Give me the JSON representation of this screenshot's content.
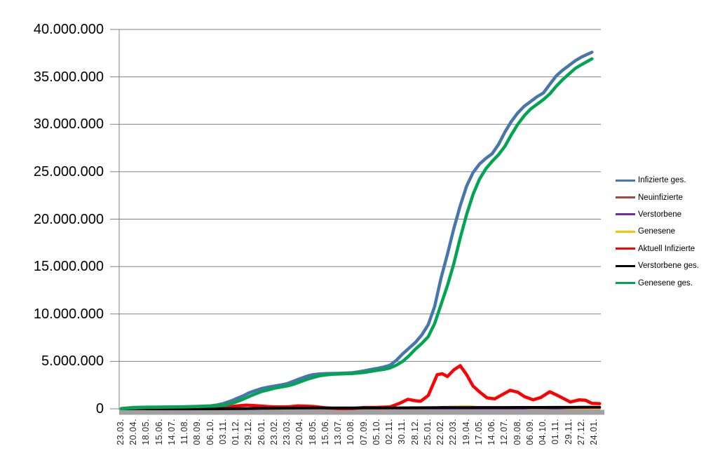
{
  "chart_data": {
    "type": "line",
    "title": "",
    "xlabel": "",
    "ylabel": "",
    "unit": "millions of persons",
    "ylim": [
      0,
      40000000
    ],
    "grid": "horizontal",
    "legend_position": "right",
    "y_axis_labels": [
      "40.000.000",
      "35.000.000",
      "30.000.000",
      "25.000.000",
      "20.000.000",
      "15.000.000",
      "10.000.000",
      "5.000.000",
      "0"
    ],
    "x_axis_labels": [
      "23.03.",
      "20.04.",
      "18.05.",
      "15.06.",
      "14.07.",
      "11.08.",
      "08.09.",
      "06.10.",
      "03.11.",
      "01.12.",
      "29.12.",
      "26.01.",
      "23.02.",
      "23.03.",
      "20.04.",
      "18.05.",
      "15.06.",
      "13.07.",
      "10.08.",
      "07.09.",
      "05.10.",
      "02.11.",
      "30.11.",
      "28.12.",
      "25.01.",
      "22.02.",
      "22.03.",
      "19.04.",
      "17.05.",
      "14.06.",
      "12.07.",
      "09.08.",
      "06.09.",
      "04.10.",
      "01.11.",
      "29.11.",
      "27.12.",
      "24.01."
    ],
    "x_unit": "tick index (one tick = 4 weeks, 23.03.2020 - 24.01.2023)",
    "series": [
      {
        "name": "Infizierte ges.",
        "color": "#4876AC",
        "points_millions": [
          [
            0,
            0.03
          ],
          [
            1,
            0.145
          ],
          [
            2,
            0.176
          ],
          [
            3,
            0.187
          ],
          [
            4,
            0.2
          ],
          [
            5,
            0.22
          ],
          [
            6,
            0.26
          ],
          [
            7,
            0.32
          ],
          [
            7.5,
            0.41
          ],
          [
            8,
            0.56
          ],
          [
            8.5,
            0.79
          ],
          [
            9,
            1.07
          ],
          [
            9.5,
            1.35
          ],
          [
            10,
            1.69
          ],
          [
            10.5,
            1.93
          ],
          [
            11,
            2.15
          ],
          [
            11.5,
            2.29
          ],
          [
            12,
            2.4
          ],
          [
            12.5,
            2.52
          ],
          [
            13,
            2.67
          ],
          [
            13.5,
            2.93
          ],
          [
            14,
            3.19
          ],
          [
            14.5,
            3.43
          ],
          [
            15,
            3.61
          ],
          [
            15.5,
            3.68
          ],
          [
            16,
            3.72
          ],
          [
            17,
            3.74
          ],
          [
            18,
            3.8
          ],
          [
            18.5,
            3.89
          ],
          [
            19,
            4.01
          ],
          [
            19.5,
            4.14
          ],
          [
            20,
            4.26
          ],
          [
            20.5,
            4.41
          ],
          [
            21,
            4.59
          ],
          [
            21.5,
            5.1
          ],
          [
            22,
            5.79
          ],
          [
            22.5,
            6.4
          ],
          [
            23,
            7.0
          ],
          [
            23.5,
            7.8
          ],
          [
            24,
            8.87
          ],
          [
            24.5,
            10.8
          ],
          [
            25,
            13.8
          ],
          [
            25.5,
            16.3
          ],
          [
            26,
            19.0
          ],
          [
            26.5,
            21.4
          ],
          [
            27,
            23.5
          ],
          [
            27.5,
            24.9
          ],
          [
            28,
            25.8
          ],
          [
            28.5,
            26.4
          ],
          [
            29,
            26.9
          ],
          [
            29.5,
            27.9
          ],
          [
            30,
            29.2
          ],
          [
            30.5,
            30.3
          ],
          [
            31,
            31.2
          ],
          [
            31.5,
            31.9
          ],
          [
            32,
            32.4
          ],
          [
            32.5,
            32.9
          ],
          [
            33,
            33.3
          ],
          [
            33.5,
            34.2
          ],
          [
            34,
            35.1
          ],
          [
            34.5,
            35.7
          ],
          [
            35,
            36.2
          ],
          [
            35.5,
            36.7
          ],
          [
            36,
            37.1
          ],
          [
            36.4,
            37.35
          ],
          [
            36.8,
            37.6
          ]
        ]
      },
      {
        "name": "Neuinfizierte",
        "color": "#9E4A42",
        "points_millions": [
          [
            0,
            0.004
          ],
          [
            1,
            0.002
          ],
          [
            3,
            0.001
          ],
          [
            5,
            0.001
          ],
          [
            7,
            0.008
          ],
          [
            8,
            0.018
          ],
          [
            9,
            0.019
          ],
          [
            10,
            0.022
          ],
          [
            11,
            0.012
          ],
          [
            12,
            0.008
          ],
          [
            13,
            0.014
          ],
          [
            14,
            0.018
          ],
          [
            15,
            0.008
          ],
          [
            16,
            0.002
          ],
          [
            17,
            0.001
          ],
          [
            18,
            0.005
          ],
          [
            19,
            0.01
          ],
          [
            20,
            0.008
          ],
          [
            21,
            0.02
          ],
          [
            22,
            0.05
          ],
          [
            23,
            0.04
          ],
          [
            24,
            0.09
          ],
          [
            25,
            0.19
          ],
          [
            25.7,
            0.22
          ],
          [
            26.5,
            0.25
          ],
          [
            27,
            0.16
          ],
          [
            27.5,
            0.12
          ],
          [
            28,
            0.07
          ],
          [
            29,
            0.05
          ],
          [
            29.8,
            0.1
          ],
          [
            30.5,
            0.12
          ],
          [
            31,
            0.08
          ],
          [
            32,
            0.04
          ],
          [
            33,
            0.09
          ],
          [
            33.6,
            0.11
          ],
          [
            34.5,
            0.04
          ],
          [
            35.5,
            0.045
          ],
          [
            36,
            0.04
          ],
          [
            36.5,
            0.02
          ],
          [
            37.4,
            0.01
          ]
        ]
      },
      {
        "name": "Verstorbene",
        "color": "#7030A0",
        "points_millions": [
          [
            0,
            0.0005
          ],
          [
            37.4,
            0.0008
          ]
        ]
      },
      {
        "name": "Genesene",
        "color": "#FFC000",
        "points_millions": [
          [
            0,
            0.002
          ],
          [
            1,
            0.004
          ],
          [
            8,
            0.01
          ],
          [
            9,
            0.015
          ],
          [
            10,
            0.02
          ],
          [
            11,
            0.015
          ],
          [
            12,
            0.008
          ],
          [
            13,
            0.01
          ],
          [
            14,
            0.016
          ],
          [
            15,
            0.012
          ],
          [
            16,
            0.004
          ],
          [
            17,
            0.001
          ],
          [
            18,
            0.003
          ],
          [
            19,
            0.008
          ],
          [
            20,
            0.008
          ],
          [
            21,
            0.012
          ],
          [
            22,
            0.035
          ],
          [
            23,
            0.045
          ],
          [
            24,
            0.06
          ],
          [
            25,
            0.15
          ],
          [
            26,
            0.22
          ],
          [
            26.8,
            0.28
          ],
          [
            27.5,
            0.25
          ],
          [
            28,
            0.15
          ],
          [
            29,
            0.08
          ],
          [
            30,
            0.09
          ],
          [
            30.8,
            0.11
          ],
          [
            31.5,
            0.09
          ],
          [
            32,
            0.05
          ],
          [
            33,
            0.07
          ],
          [
            34,
            0.1
          ],
          [
            34.8,
            0.06
          ],
          [
            35.5,
            0.04
          ],
          [
            36,
            0.045
          ],
          [
            37,
            0.02
          ],
          [
            37.4,
            0.01
          ]
        ]
      },
      {
        "name": "Aktuell Infizierte",
        "color": "#FF0000",
        "points_millions": [
          [
            0,
            0.02
          ],
          [
            0.4,
            0.07
          ],
          [
            1,
            0.06
          ],
          [
            2,
            0.02
          ],
          [
            3,
            0.008
          ],
          [
            4,
            0.006
          ],
          [
            5,
            0.01
          ],
          [
            6,
            0.02
          ],
          [
            7,
            0.04
          ],
          [
            8,
            0.12
          ],
          [
            9,
            0.3
          ],
          [
            9.8,
            0.39
          ],
          [
            10.5,
            0.33
          ],
          [
            11.5,
            0.24
          ],
          [
            12,
            0.21
          ],
          [
            13,
            0.21
          ],
          [
            13.8,
            0.3
          ],
          [
            14.5,
            0.28
          ],
          [
            15,
            0.25
          ],
          [
            16,
            0.1
          ],
          [
            17,
            0.03
          ],
          [
            18,
            0.03
          ],
          [
            19,
            0.14
          ],
          [
            20,
            0.15
          ],
          [
            21,
            0.2
          ],
          [
            21.8,
            0.6
          ],
          [
            22.4,
            1.0
          ],
          [
            23,
            0.85
          ],
          [
            23.4,
            0.8
          ],
          [
            24,
            1.4
          ],
          [
            24.7,
            3.6
          ],
          [
            25.1,
            3.7
          ],
          [
            25.5,
            3.4
          ],
          [
            26,
            4.1
          ],
          [
            26.5,
            4.55
          ],
          [
            27,
            3.6
          ],
          [
            27.5,
            2.4
          ],
          [
            28,
            1.8
          ],
          [
            28.6,
            1.15
          ],
          [
            29.2,
            1.05
          ],
          [
            29.8,
            1.5
          ],
          [
            30.4,
            1.95
          ],
          [
            31,
            1.75
          ],
          [
            31.5,
            1.3
          ],
          [
            32.2,
            0.95
          ],
          [
            32.8,
            1.2
          ],
          [
            33.5,
            1.8
          ],
          [
            34.2,
            1.35
          ],
          [
            35.1,
            0.72
          ],
          [
            35.8,
            0.95
          ],
          [
            36.3,
            0.9
          ],
          [
            36.8,
            0.58
          ],
          [
            37.4,
            0.55
          ]
        ]
      },
      {
        "name": "Verstorbene ges.",
        "color": "#000000",
        "points_millions": [
          [
            0,
            0.002
          ],
          [
            8,
            0.011
          ],
          [
            9,
            0.017
          ],
          [
            10,
            0.033
          ],
          [
            11,
            0.054
          ],
          [
            12,
            0.069
          ],
          [
            13,
            0.075
          ],
          [
            14,
            0.081
          ],
          [
            15,
            0.086
          ],
          [
            16,
            0.09
          ],
          [
            18,
            0.092
          ],
          [
            20,
            0.095
          ],
          [
            21,
            0.096
          ],
          [
            22,
            0.101
          ],
          [
            23,
            0.111
          ],
          [
            24,
            0.117
          ],
          [
            25,
            0.122
          ],
          [
            26,
            0.127
          ],
          [
            27,
            0.133
          ],
          [
            28,
            0.138
          ],
          [
            29,
            0.14
          ],
          [
            30,
            0.142
          ],
          [
            31,
            0.145
          ],
          [
            32,
            0.147
          ],
          [
            33,
            0.15
          ],
          [
            34,
            0.153
          ],
          [
            35,
            0.156
          ],
          [
            36,
            0.161
          ],
          [
            37.4,
            0.166
          ]
        ]
      },
      {
        "name": "Genesene ges.",
        "color": "#00A551",
        "points_millions": [
          [
            0,
            0.01
          ],
          [
            1,
            0.08
          ],
          [
            2,
            0.15
          ],
          [
            3,
            0.172
          ],
          [
            4,
            0.186
          ],
          [
            5,
            0.2
          ],
          [
            6,
            0.235
          ],
          [
            7,
            0.28
          ],
          [
            8,
            0.37
          ],
          [
            8.5,
            0.52
          ],
          [
            9,
            0.73
          ],
          [
            9.5,
            1.0
          ],
          [
            10,
            1.3
          ],
          [
            10.5,
            1.58
          ],
          [
            11,
            1.83
          ],
          [
            11.5,
            2.0
          ],
          [
            12,
            2.18
          ],
          [
            12.5,
            2.3
          ],
          [
            13,
            2.42
          ],
          [
            13.5,
            2.6
          ],
          [
            14,
            2.85
          ],
          [
            14.5,
            3.1
          ],
          [
            15,
            3.3
          ],
          [
            15.5,
            3.48
          ],
          [
            16,
            3.58
          ],
          [
            16.5,
            3.64
          ],
          [
            17,
            3.67
          ],
          [
            18,
            3.71
          ],
          [
            19,
            3.84
          ],
          [
            19.5,
            3.95
          ],
          [
            20,
            4.05
          ],
          [
            20.5,
            4.15
          ],
          [
            21,
            4.3
          ],
          [
            21.5,
            4.6
          ],
          [
            22,
            5.0
          ],
          [
            22.5,
            5.6
          ],
          [
            23,
            6.3
          ],
          [
            23.5,
            6.9
          ],
          [
            24,
            7.6
          ],
          [
            24.5,
            9.0
          ],
          [
            25,
            11.0
          ],
          [
            25.5,
            13.0
          ],
          [
            26,
            15.3
          ],
          [
            26.5,
            18.0
          ],
          [
            27,
            20.5
          ],
          [
            27.5,
            22.6
          ],
          [
            28,
            24.2
          ],
          [
            28.5,
            25.3
          ],
          [
            29,
            26.1
          ],
          [
            29.5,
            26.8
          ],
          [
            30,
            27.7
          ],
          [
            30.5,
            28.9
          ],
          [
            31,
            30.0
          ],
          [
            31.5,
            30.9
          ],
          [
            32,
            31.6
          ],
          [
            32.5,
            32.1
          ],
          [
            33,
            32.6
          ],
          [
            33.5,
            33.2
          ],
          [
            34,
            34.0
          ],
          [
            34.5,
            34.7
          ],
          [
            35,
            35.3
          ],
          [
            35.5,
            35.9
          ],
          [
            36,
            36.3
          ],
          [
            36.4,
            36.6
          ],
          [
            36.8,
            36.9
          ]
        ]
      }
    ]
  },
  "legend": {
    "items": [
      "Infizierte ges.",
      "Neuinfizierte",
      "Verstorbene",
      "Genesene",
      "Aktuell Infizierte",
      "Verstorbene ges.",
      "Genesene ges."
    ]
  },
  "colors": {
    "gridline": "#808080",
    "axis": "#808080",
    "axis_band": "#A0A0A0",
    "background": "#FFFFFF"
  }
}
